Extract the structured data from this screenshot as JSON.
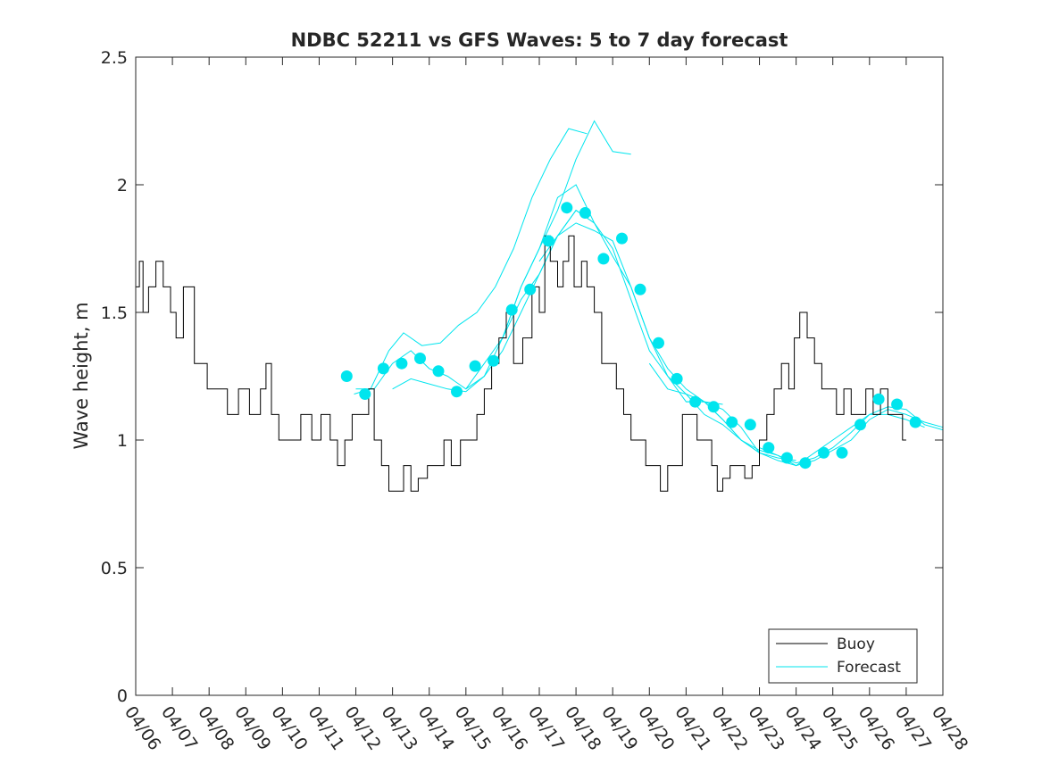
{
  "chart_data": {
    "type": "line",
    "title": "NDBC 52211 vs GFS Waves: 5 to 7 day forecast",
    "xlabel": "",
    "ylabel": "Wave height, m",
    "xlim": [
      "04/06",
      "04/28"
    ],
    "ylim": [
      0,
      2.5
    ],
    "x_tick_labels": [
      "04/06",
      "04/07",
      "04/08",
      "04/09",
      "04/10",
      "04/11",
      "04/12",
      "04/13",
      "04/14",
      "04/15",
      "04/16",
      "04/17",
      "04/18",
      "04/19",
      "04/20",
      "04/21",
      "04/22",
      "04/23",
      "04/24",
      "04/25",
      "04/26",
      "04/27",
      "04/28"
    ],
    "y_ticks": [
      0,
      0.5,
      1,
      1.5,
      2,
      2.5
    ],
    "y_tick_labels": [
      "0",
      "0.5",
      "1",
      "1.5",
      "2",
      "2.5"
    ],
    "grid": false,
    "legend_position": "bottom-right",
    "colors": {
      "buoy": "#000000",
      "forecast": "#00e5ee"
    },
    "legend": [
      {
        "label": "Buoy",
        "series": "buoy"
      },
      {
        "label": "Forecast",
        "series": "forecast"
      }
    ],
    "buoy": {
      "name": "Buoy",
      "x_day": [
        0,
        0.1,
        0.2,
        0.35,
        0.55,
        0.75,
        0.95,
        1.1,
        1.3,
        1.6,
        1.75,
        1.95,
        2.2,
        2.5,
        2.8,
        3.1,
        3.4,
        3.55,
        3.7,
        3.9,
        4.2,
        4.5,
        4.8,
        5.05,
        5.3,
        5.5,
        5.7,
        5.9,
        6.1,
        6.35,
        6.5,
        6.7,
        6.9,
        7.1,
        7.3,
        7.5,
        7.7,
        7.95,
        8.15,
        8.4,
        8.6,
        8.85,
        9.1,
        9.3,
        9.5,
        9.7,
        9.9,
        10.1,
        10.3,
        10.55,
        10.8,
        11,
        11.15,
        11.3,
        11.5,
        11.65,
        11.8,
        11.95,
        12.15,
        12.3,
        12.5,
        12.7,
        12.9,
        13.1,
        13.3,
        13.5,
        13.7,
        13.9,
        14.1,
        14.3,
        14.5,
        14.7,
        14.9,
        15.1,
        15.3,
        15.5,
        15.7,
        15.85,
        16,
        16.2,
        16.4,
        16.6,
        16.8,
        17.0,
        17.2,
        17.4,
        17.6,
        17.8,
        17.95,
        18.1,
        18.3,
        18.5,
        18.7,
        18.9,
        19.1,
        19.3,
        19.5,
        19.7,
        19.9,
        20.1,
        20.3,
        20.5,
        20.7,
        20.9,
        21.0
      ],
      "y": [
        1.6,
        1.7,
        1.5,
        1.6,
        1.7,
        1.6,
        1.5,
        1.4,
        1.6,
        1.3,
        1.3,
        1.2,
        1.2,
        1.1,
        1.2,
        1.1,
        1.2,
        1.3,
        1.1,
        1.0,
        1.0,
        1.1,
        1.0,
        1.1,
        1.0,
        0.9,
        1.0,
        1.1,
        1.1,
        1.2,
        1.0,
        0.9,
        0.8,
        0.8,
        0.9,
        0.8,
        0.85,
        0.9,
        0.9,
        1.0,
        0.9,
        1.0,
        1.0,
        1.1,
        1.2,
        1.3,
        1.4,
        1.5,
        1.3,
        1.4,
        1.6,
        1.5,
        1.8,
        1.7,
        1.6,
        1.7,
        1.8,
        1.6,
        1.7,
        1.6,
        1.5,
        1.3,
        1.3,
        1.2,
        1.1,
        1.0,
        1.0,
        0.9,
        0.9,
        0.8,
        0.9,
        0.9,
        1.1,
        1.1,
        1.0,
        1.0,
        0.9,
        0.8,
        0.85,
        0.9,
        0.9,
        0.85,
        0.9,
        1.0,
        1.1,
        1.2,
        1.3,
        1.2,
        1.4,
        1.5,
        1.4,
        1.3,
        1.2,
        1.2,
        1.1,
        1.2,
        1.1,
        1.1,
        1.2,
        1.1,
        1.2,
        1.1,
        1.1,
        1.0,
        1.0
      ]
    },
    "forecast": {
      "name": "Forecast",
      "markers": {
        "x_day": [
          5.75,
          6.25,
          6.75,
          7.25,
          7.75,
          8.25,
          8.75,
          9.25,
          9.75,
          10.25,
          10.75,
          11.25,
          11.75,
          12.25,
          12.75,
          13.25,
          13.75,
          14.25,
          14.75,
          15.25,
          15.75,
          16.25,
          16.75,
          17.25,
          17.75,
          18.25,
          18.75,
          19.25,
          19.75,
          20.25,
          20.75,
          21.25
        ],
        "y": [
          1.25,
          1.18,
          1.28,
          1.3,
          1.32,
          1.27,
          1.19,
          1.29,
          1.31,
          1.51,
          1.59,
          1.78,
          1.91,
          1.89,
          1.71,
          1.79,
          1.59,
          1.38,
          1.24,
          1.15,
          1.13,
          1.07,
          1.06,
          0.97,
          0.93,
          0.91,
          0.95,
          0.95,
          1.06,
          1.16,
          1.14,
          1.07
        ]
      },
      "runs": [
        {
          "x_day": [
            6.0,
            6.5,
            7.0,
            7.5,
            8.0,
            8.5,
            9.0,
            9.5,
            10.0,
            10.5,
            11.0,
            11.5,
            12.0,
            12.5
          ],
          "y": [
            1.2,
            1.2,
            1.3,
            1.35,
            1.28,
            1.25,
            1.2,
            1.3,
            1.4,
            1.6,
            1.75,
            1.95,
            2.0,
            1.85
          ]
        },
        {
          "x_day": [
            5.95,
            6.4,
            6.9,
            7.3,
            7.8,
            8.3,
            8.8,
            9.3,
            9.8,
            10.3,
            10.8,
            11.3,
            11.8,
            12.3
          ],
          "y": [
            1.18,
            1.2,
            1.35,
            1.42,
            1.37,
            1.38,
            1.45,
            1.5,
            1.6,
            1.75,
            1.95,
            2.1,
            2.22,
            2.2
          ]
        },
        {
          "x_day": [
            7.0,
            7.5,
            8.0,
            8.5,
            9.0,
            9.5,
            10.0,
            10.5,
            11.0,
            11.5,
            12.0,
            12.5,
            13.0,
            13.5
          ],
          "y": [
            1.2,
            1.24,
            1.22,
            1.2,
            1.19,
            1.25,
            1.4,
            1.6,
            1.75,
            1.9,
            2.1,
            2.25,
            2.13,
            2.12
          ]
        },
        {
          "x_day": [
            9.0,
            9.5,
            10.0,
            10.5,
            11.0,
            11.5,
            12.0,
            12.5,
            13.0,
            13.5,
            14.0,
            14.5,
            15.0,
            15.5,
            16.0
          ],
          "y": [
            1.2,
            1.25,
            1.35,
            1.5,
            1.65,
            1.8,
            1.9,
            1.85,
            1.72,
            1.6,
            1.4,
            1.28,
            1.2,
            1.15,
            1.14
          ]
        },
        {
          "x_day": [
            10.0,
            10.5,
            11.0,
            11.5,
            12.0,
            12.5,
            13.0,
            13.5,
            14.0,
            14.5,
            15.0,
            15.5,
            16.0,
            16.5,
            17.0
          ],
          "y": [
            1.4,
            1.55,
            1.65,
            1.8,
            1.9,
            1.85,
            1.75,
            1.55,
            1.35,
            1.25,
            1.15,
            1.15,
            1.12,
            1.05,
            0.95
          ]
        },
        {
          "x_day": [
            11.0,
            11.5,
            12.0,
            12.5,
            13.0,
            13.5,
            14.0,
            14.5,
            15.0,
            15.5,
            16.0,
            16.5,
            17.0,
            17.5,
            18.0
          ],
          "y": [
            1.7,
            1.8,
            1.85,
            1.82,
            1.78,
            1.6,
            1.4,
            1.25,
            1.18,
            1.15,
            1.08,
            1.0,
            0.95,
            0.93,
            0.92
          ]
        },
        {
          "x_day": [
            14.0,
            14.5,
            15.0,
            15.5,
            16.0,
            16.5,
            17.0,
            17.5,
            18.0,
            18.5,
            19.0,
            19.5,
            20.0,
            20.5,
            21.0,
            21.5
          ],
          "y": [
            1.3,
            1.2,
            1.18,
            1.1,
            1.06,
            1.0,
            0.96,
            0.94,
            0.9,
            0.95,
            1.0,
            1.05,
            1.1,
            1.1,
            1.08,
            1.05
          ]
        },
        {
          "x_day": [
            15.0,
            15.5,
            16.0,
            16.5,
            17.0,
            17.5,
            18.0,
            18.5,
            19.0,
            19.5,
            20.0,
            20.5,
            21.0,
            21.5,
            22.0
          ],
          "y": [
            1.15,
            1.15,
            1.08,
            1.0,
            0.95,
            0.92,
            0.9,
            0.92,
            0.96,
            1.0,
            1.08,
            1.12,
            1.1,
            1.07,
            1.05
          ]
        },
        {
          "x_day": [
            17.0,
            17.5,
            18.0,
            18.5,
            19.0,
            19.5,
            20.0,
            20.5,
            21.0,
            21.5,
            22.0
          ],
          "y": [
            0.97,
            0.94,
            0.91,
            0.93,
            0.97,
            1.03,
            1.1,
            1.13,
            1.12,
            1.06,
            1.04
          ]
        }
      ]
    }
  }
}
